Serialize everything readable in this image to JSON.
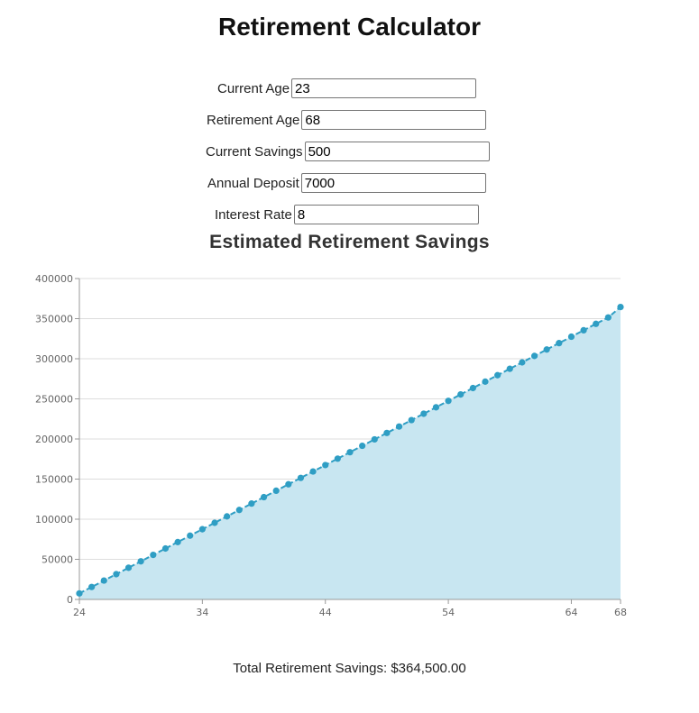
{
  "header": {
    "title": "Retirement Calculator"
  },
  "form": {
    "fields": [
      {
        "label": "Current Age",
        "value": "23"
      },
      {
        "label": "Retirement Age",
        "value": "68"
      },
      {
        "label": "Current Savings",
        "value": "500"
      },
      {
        "label": "Annual Deposit",
        "value": "7000"
      },
      {
        "label": "Interest Rate",
        "value": "8"
      }
    ]
  },
  "colors": {
    "line": "#2f9ec4",
    "area": "#c8e6f1",
    "grid": "#dddddd",
    "axis": "#999999"
  },
  "chart_data": {
    "type": "area",
    "title": "Estimated Retirement Savings",
    "xlabel": "",
    "ylabel": "",
    "x": [
      24,
      25,
      26,
      27,
      28,
      29,
      30,
      31,
      32,
      33,
      34,
      35,
      36,
      37,
      38,
      39,
      40,
      41,
      42,
      43,
      44,
      45,
      46,
      47,
      48,
      49,
      50,
      51,
      52,
      53,
      54,
      55,
      56,
      57,
      58,
      59,
      60,
      61,
      62,
      63,
      64,
      65,
      66,
      67,
      68
    ],
    "series": [
      {
        "values": [
          7500,
          15500,
          23500,
          31500,
          39500,
          47500,
          55500,
          63500,
          71500,
          79500,
          87500,
          95500,
          103500,
          111500,
          119500,
          127500,
          135500,
          143500,
          151500,
          159500,
          167500,
          175500,
          183500,
          191500,
          199500,
          207500,
          215500,
          223500,
          231500,
          239500,
          247500,
          255500,
          263500,
          271500,
          279500,
          287500,
          295500,
          303500,
          311500,
          319500,
          327500,
          335500,
          343500,
          351500,
          364500
        ]
      }
    ],
    "x_ticks": [
      24,
      34,
      44,
      54,
      64,
      68
    ],
    "y_ticks": [
      0,
      50000,
      100000,
      150000,
      200000,
      250000,
      300000,
      350000,
      400000
    ],
    "xlim": [
      24,
      68
    ],
    "ylim": [
      0,
      400000
    ],
    "grid": true,
    "markers": true,
    "line_style": "dashed"
  },
  "result": {
    "label": "Total Retirement Savings:",
    "value": "$364,500.00"
  }
}
